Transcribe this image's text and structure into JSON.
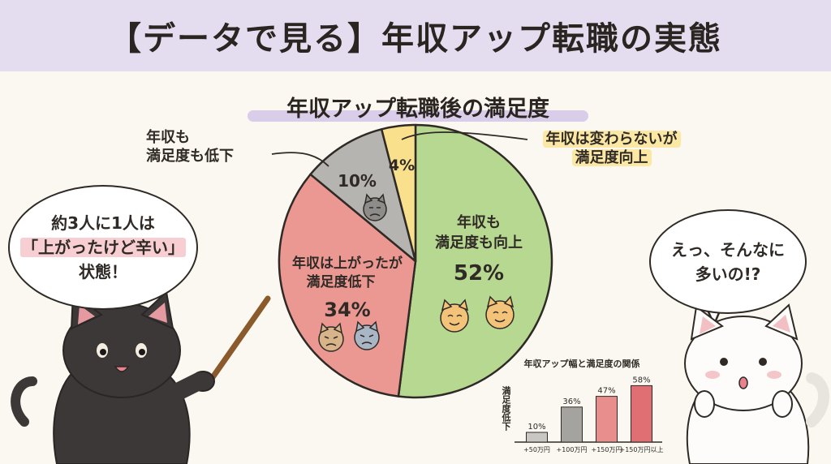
{
  "header": {
    "title": "【データで見る】年収アップ転職の実態"
  },
  "chart_data": [
    {
      "type": "pie",
      "title": "年収アップ転職後の満足度",
      "slices": [
        {
          "label": "年収も満足度も向上",
          "value": 52,
          "value_label": "52%",
          "color": "#b7d891"
        },
        {
          "label": "年収は上がったが満足度低下",
          "value": 34,
          "value_label": "34%",
          "color": "#ec9892"
        },
        {
          "label": "年収も満足度も低下",
          "value": 10,
          "value_label": "10%",
          "color": "#b6b4b1"
        },
        {
          "label": "年収は変わらないが満足度向上",
          "value": 4,
          "value_label": "4%",
          "color": "#f9e08c"
        }
      ]
    },
    {
      "type": "bar",
      "title": "年収アップ幅と満足度の関係",
      "ylabel": "満足度低下",
      "categories": [
        "+50万円",
        "+100万円",
        "+150万円",
        "+150万円以上"
      ],
      "values": [
        10,
        36,
        47,
        58
      ],
      "value_labels": [
        "10%",
        "36%",
        "47%",
        "58%"
      ],
      "colors": [
        "#c9c7c4",
        "#a5a3a0",
        "#e88f8d",
        "#e06f74"
      ],
      "ylim": [
        0,
        60
      ]
    }
  ],
  "pie_labels": {
    "green": [
      "年収も",
      "満足度も向上"
    ],
    "red": [
      "年収は上がったが",
      "満足度低下"
    ],
    "gray": [
      "年収も",
      "満足度も低下"
    ],
    "yellow": [
      "年収は変わらないが",
      "満足度向上"
    ]
  },
  "bubbles": {
    "left": {
      "line1": "約3人に1人は",
      "line2": "「上がったけど辛い」",
      "line3": "状態！"
    },
    "right": {
      "line1": "えっ、そんなに",
      "line2": "多いの!?"
    }
  },
  "colors": {
    "header_bg": "#e4dcef",
    "background": "#fbf8f1"
  }
}
